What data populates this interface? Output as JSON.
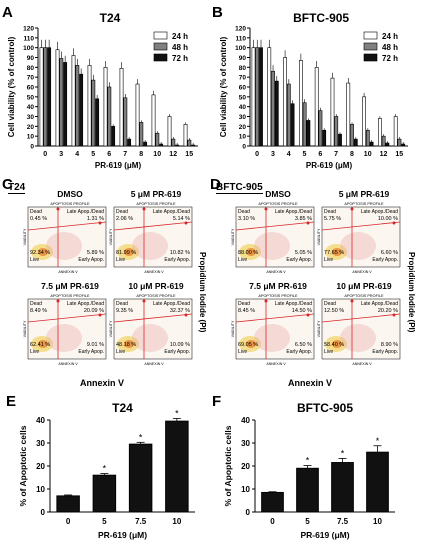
{
  "panels": {
    "A": "A",
    "B": "B",
    "C": "C",
    "D": "D",
    "E": "E",
    "F": "F"
  },
  "colors": {
    "h24": "#ffffff",
    "h48": "#808080",
    "h72": "#111111",
    "bar_stroke": "#000000",
    "facs_red": "#d9262a",
    "facs_bg": "#fbf6ef"
  },
  "facs_C": {
    "cell_line": "T24",
    "side_label": "Propidium Iodide (PI)",
    "bottom_label": "Annexin V",
    "axis_x": "ANNEXIN V",
    "axis_y": "VIABILITY",
    "profile": "APOPTOSIS PROFILE",
    "plots": [
      {
        "title": "DMSO",
        "dead": "0.45 %",
        "late": "1.31 %",
        "live": "92.34 %",
        "early": "5.89 %"
      },
      {
        "title": "5 μM PR-619",
        "dead": "2.06 %",
        "late": "5.14 %",
        "live": "81.99 %",
        "early": "10.82 %"
      },
      {
        "title": "7.5 μM PR-619",
        "dead": "8.49 %",
        "late": "20.09 %",
        "live": "62.41 %",
        "early": "9.01 %"
      },
      {
        "title": "10 μM PR-619",
        "dead": "9.35 %",
        "late": "32.37 %",
        "live": "48.18 %",
        "early": "10.09 %"
      }
    ]
  },
  "facs_D": {
    "cell_line": "BFTC-905",
    "side_label": "Propidium Iodide (PI)",
    "bottom_label": "Annexin V",
    "axis_x": "ANNEXIN V",
    "axis_y": "VIABILITY",
    "profile": "APOPTOSIS PROFILE",
    "plots": [
      {
        "title": "DMSO",
        "dead": "3.10 %",
        "late": "3.85 %",
        "live": "88.00 %",
        "early": "5.05 %"
      },
      {
        "title": "5 μM PR-619",
        "dead": "5.75 %",
        "late": "10.00 %",
        "live": "77.65 %",
        "early": "6.60 %"
      },
      {
        "title": "7.5 μM PR-619",
        "dead": "8.45 %",
        "late": "14.50 %",
        "live": "69.05 %",
        "early": "6.50 %"
      },
      {
        "title": "10 μM PR-619",
        "dead": "12.50 %",
        "late": "20.20 %",
        "live": "58.40 %",
        "early": "8.90 %"
      }
    ]
  },
  "facs_quadrant_labels": {
    "dead": "Dead",
    "late": "Late Apop./Dead",
    "live": "Live",
    "early": "Early Apop."
  },
  "chart_data": [
    {
      "type": "bar",
      "panel": "A",
      "title": "T24",
      "xlabel": "PR-619 (μM)",
      "ylabel": "Cell viability (% of control)",
      "categories": [
        "0",
        "3",
        "4",
        "5",
        "6",
        "7",
        "8",
        "10",
        "12",
        "15"
      ],
      "ylim": [
        0,
        120
      ],
      "yticks": [
        0,
        10,
        20,
        30,
        40,
        50,
        60,
        70,
        80,
        90,
        100,
        110,
        120
      ],
      "legend": "top-right",
      "series": [
        {
          "name": "24 h",
          "values": [
            100,
            98,
            92,
            82,
            80,
            79,
            63,
            52,
            30,
            22
          ]
        },
        {
          "name": "48 h",
          "values": [
            100,
            89,
            82,
            67,
            60,
            49,
            24,
            13,
            7,
            6
          ]
        },
        {
          "name": "72 h",
          "values": [
            100,
            85,
            73,
            48,
            20,
            7,
            4,
            2,
            1,
            1
          ]
        }
      ]
    },
    {
      "type": "bar",
      "panel": "B",
      "title": "BFTC-905",
      "xlabel": "PR-619 (μM)",
      "ylabel": "Cell viability (% of control)",
      "categories": [
        "0",
        "3",
        "4",
        "5",
        "6",
        "7",
        "8",
        "10",
        "12",
        "15"
      ],
      "ylim": [
        0,
        120
      ],
      "yticks": [
        0,
        10,
        20,
        30,
        40,
        50,
        60,
        70,
        80,
        90,
        100,
        110,
        120
      ],
      "legend": "top-right",
      "series": [
        {
          "name": "24 h",
          "values": [
            100,
            100,
            90,
            87,
            80,
            69,
            64,
            50,
            28,
            30
          ]
        },
        {
          "name": "48 h",
          "values": [
            100,
            76,
            63,
            44,
            36,
            30,
            22,
            16,
            10,
            7
          ]
        },
        {
          "name": "72 h",
          "values": [
            100,
            66,
            43,
            26,
            16,
            12,
            7,
            4,
            3,
            2
          ]
        }
      ]
    },
    {
      "type": "bar",
      "panel": "E",
      "title": "T24",
      "xlabel": "PR-619 (μM)",
      "ylabel": "% of Apoptotic cells",
      "categories": [
        "0",
        "5",
        "7.5",
        "10"
      ],
      "values": [
        7,
        16,
        29.5,
        39.5
      ],
      "errors": [
        0.4,
        0.7,
        0.8,
        1.2
      ],
      "markers": [
        "",
        "*",
        "*",
        "*"
      ],
      "ylim": [
        0,
        40
      ],
      "yticks": [
        0,
        10,
        20,
        30,
        40
      ]
    },
    {
      "type": "bar",
      "panel": "F",
      "title": "BFTC-905",
      "xlabel": "PR-619 (μM)",
      "ylabel": "% of Apoptotic cells",
      "categories": [
        "0",
        "5",
        "7.5",
        "10"
      ],
      "values": [
        8.5,
        19,
        21.5,
        26
      ],
      "errors": [
        0.3,
        1.2,
        1.8,
        2.8
      ],
      "markers": [
        "",
        "*",
        "*",
        "*"
      ],
      "ylim": [
        0,
        40
      ],
      "yticks": [
        0,
        10,
        20,
        30,
        40
      ]
    }
  ]
}
